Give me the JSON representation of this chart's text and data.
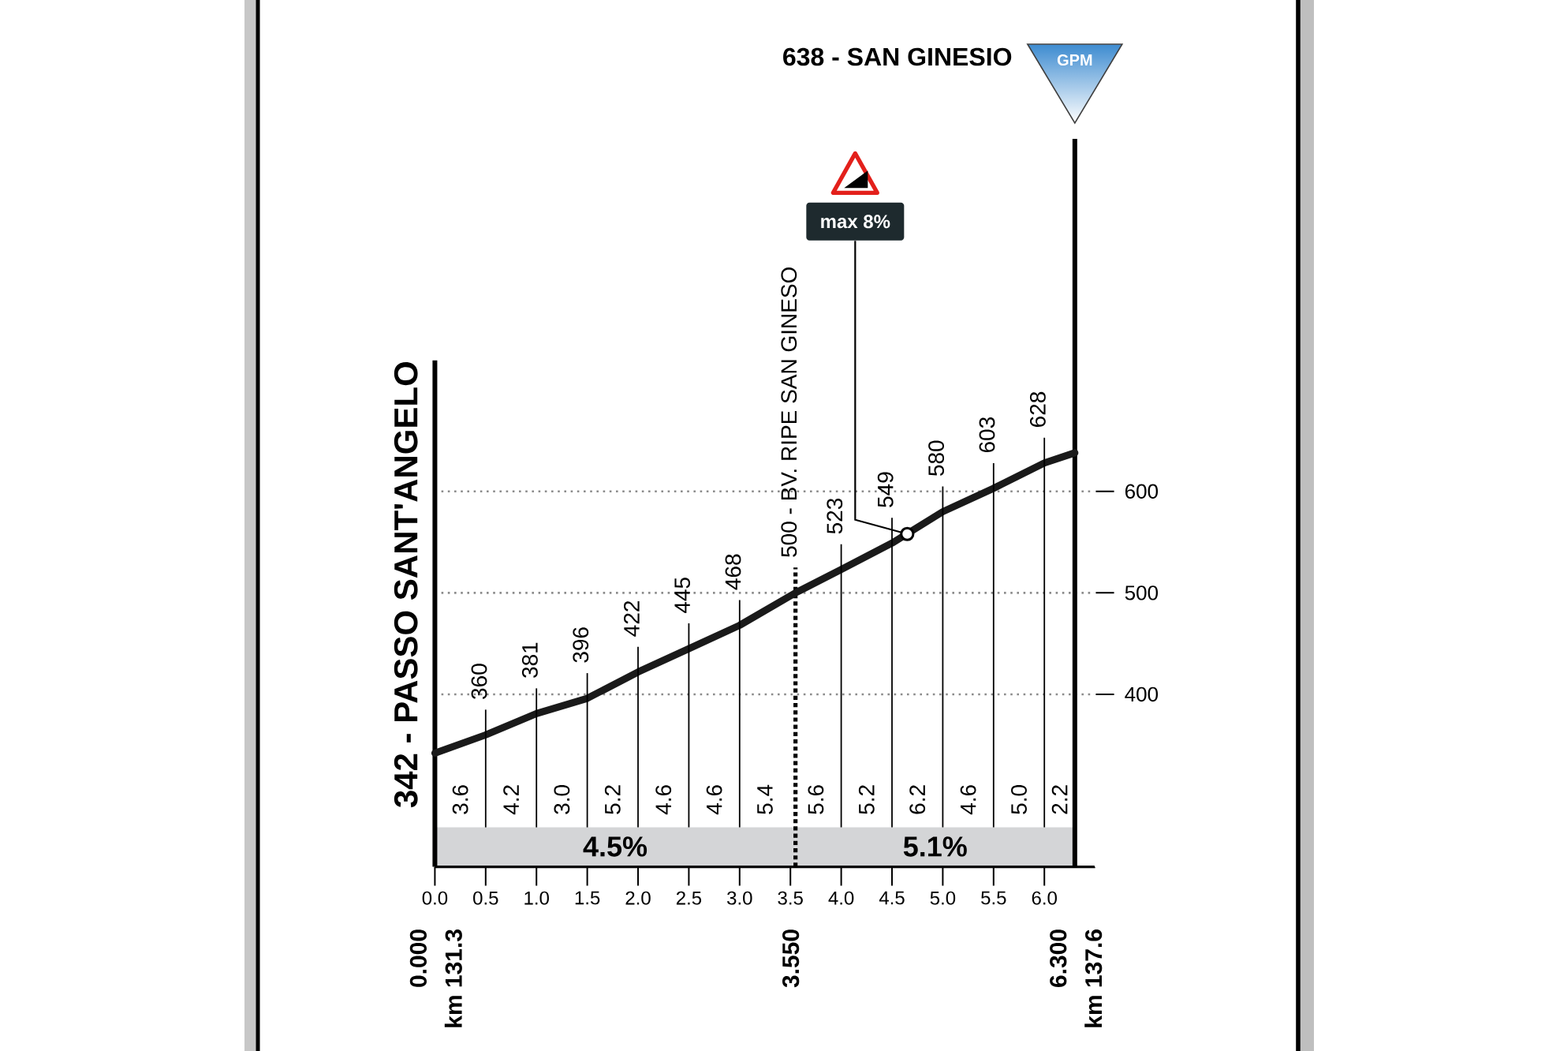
{
  "chart_data": {
    "type": "line",
    "title": "638 - SAN GINESIO",
    "x": [
      0,
      0.5,
      1.0,
      1.5,
      2.0,
      2.5,
      3.0,
      3.55,
      4.0,
      4.5,
      5.0,
      5.5,
      6.0,
      6.3
    ],
    "values": [
      342,
      360,
      381,
      396,
      422,
      445,
      468,
      500,
      523,
      549,
      580,
      603,
      628,
      638
    ],
    "value_labels": [
      "342 - PASSO SANT'ANGELO",
      "360",
      "381",
      "396",
      "422",
      "445",
      "468",
      "500 - BV. RIPE SAN GINESO",
      "523",
      "549",
      "580",
      "603",
      "628",
      null
    ],
    "color": "#1a1a1a",
    "xlim": [
      0,
      6.5
    ],
    "ylim": [
      230,
      960
    ],
    "xticks": [
      {
        "value": 0,
        "label": "0.0"
      },
      0.5,
      {
        "value": 1,
        "label": "1.0"
      },
      1.5,
      {
        "value": 2,
        "label": "2.0"
      },
      2.5,
      {
        "value": 3,
        "label": "3.0"
      },
      3.5,
      {
        "value": 4,
        "label": "4.0"
      },
      4.5,
      {
        "value": 5,
        "label": "5.0"
      },
      5.5,
      {
        "value": 6,
        "label": "6.0"
      }
    ],
    "yticks": [
      400,
      500,
      600
    ],
    "grid": "y",
    "ref_lines": [
      {
        "axis": "x",
        "value": 0,
        "label": "0.000",
        "line_style": "solid"
      },
      {
        "axis": "x",
        "value": 3.55,
        "label": "3.550",
        "line_style": "dotted"
      },
      {
        "axis": "x",
        "value": 6.3,
        "label": "6.300",
        "line_style": "solid"
      }
    ],
    "bands": [
      {
        "axis": "x",
        "from": 0,
        "to": 3.55,
        "label": "4.5%",
        "color": "#d4d5d7"
      },
      {
        "axis": "x",
        "from": 3.55,
        "to": 6.3,
        "label": "5.1%",
        "color": "#d4d5d7"
      }
    ],
    "annotations": [
      "3.6",
      "4.2",
      "3.0",
      "5.2",
      "4.6",
      "4.6",
      "5.4",
      "5.6",
      "5.2",
      "6.2",
      "4.6",
      "5.0",
      "2.2",
      "km 131.3",
      "km 137.6",
      {
        "text": "max 8%",
        "x": 4.65,
        "y": 558
      },
      "GPM"
    ]
  }
}
